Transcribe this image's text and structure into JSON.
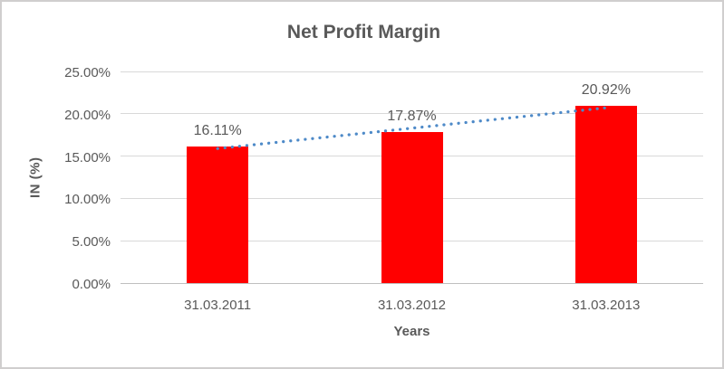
{
  "chart_data": {
    "type": "bar",
    "title": "Net Profit Margin",
    "xlabel": "Years",
    "ylabel": "IN (%)",
    "categories": [
      "31.03.2011",
      "31.03.2012",
      "31.03.2013"
    ],
    "values": [
      16.11,
      17.87,
      20.92
    ],
    "data_labels": [
      "16.11%",
      "17.87%",
      "20.92%"
    ],
    "ytick_values": [
      0,
      5,
      10,
      15,
      20,
      25
    ],
    "ytick_labels": [
      "0.00%",
      "5.00%",
      "10.00%",
      "15.00%",
      "20.00%",
      "25.00%"
    ],
    "ylim": [
      0,
      25
    ],
    "grid": true,
    "legend": "none",
    "bar_color": "#ff0000",
    "text_color": "#595959",
    "gridline_color": "#d9d9d9",
    "axis_line_color": "#bfbfbf",
    "frame_border_color": "#d0cece",
    "trendline": {
      "type": "linear",
      "style": "dotted",
      "color": "#4e8ac8"
    }
  }
}
